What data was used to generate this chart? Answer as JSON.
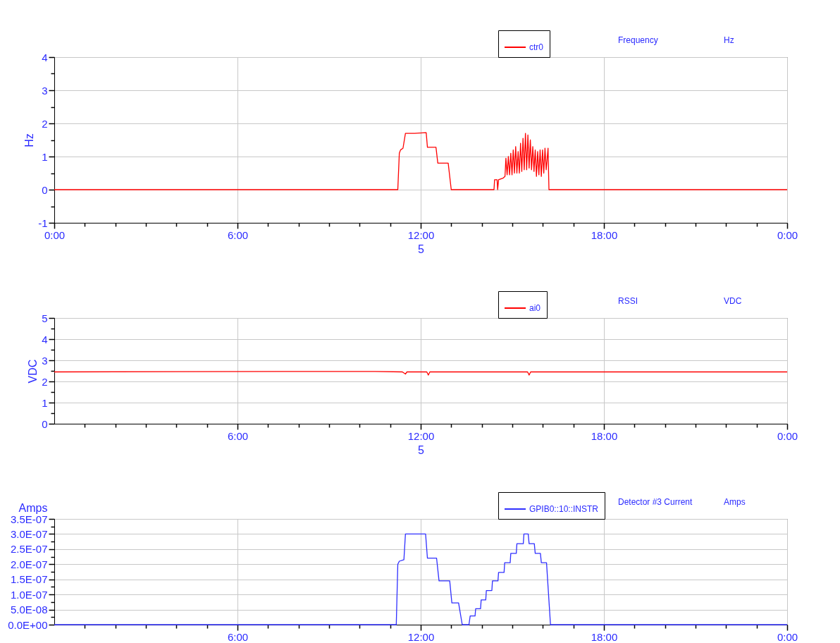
{
  "chart_data": [
    {
      "type": "line",
      "ylabel": "Hz",
      "xlabel": "5",
      "annotations": [
        "Frequency",
        "Hz"
      ],
      "legend": "top right",
      "grid": true,
      "xlim": [
        0,
        24
      ],
      "ylim": [
        -1,
        4
      ],
      "xticks": [
        {
          "value": 0,
          "label": "0:00"
        },
        {
          "value": 1,
          "label": null
        },
        {
          "value": 2,
          "label": null
        },
        {
          "value": 3,
          "label": null
        },
        {
          "value": 4,
          "label": null
        },
        {
          "value": 5,
          "label": null
        },
        {
          "value": 6,
          "label": "6:00"
        },
        {
          "value": 7,
          "label": null
        },
        {
          "value": 8,
          "label": null
        },
        {
          "value": 9,
          "label": null
        },
        {
          "value": 10,
          "label": null
        },
        {
          "value": 11,
          "label": null
        },
        {
          "value": 12,
          "label": "12:00"
        },
        {
          "value": 13,
          "label": null
        },
        {
          "value": 14,
          "label": null
        },
        {
          "value": 15,
          "label": null
        },
        {
          "value": 16,
          "label": null
        },
        {
          "value": 17,
          "label": null
        },
        {
          "value": 18,
          "label": "18:00"
        },
        {
          "value": 19,
          "label": null
        },
        {
          "value": 20,
          "label": null
        },
        {
          "value": 21,
          "label": null
        },
        {
          "value": 22,
          "label": null
        },
        {
          "value": 23,
          "label": null
        },
        {
          "value": 24,
          "label": "0:00"
        }
      ],
      "yticks": [
        -1,
        {
          "value": -0.5,
          "label": null
        },
        0,
        {
          "value": 0.5,
          "label": null
        },
        1,
        {
          "value": 1.5,
          "label": null
        },
        2,
        {
          "value": 2.5,
          "label": null
        },
        3,
        {
          "value": 3.5,
          "label": null
        },
        4
      ],
      "series": [
        {
          "name": "ctr0",
          "color": "#ff0000",
          "x": [
            0,
            11.25,
            11.3,
            11.34,
            11.42,
            11.5,
            11.8,
            12.18,
            12.22,
            12.5,
            12.56,
            12.9,
            13.0,
            14.4,
            14.42,
            14.5,
            14.52,
            14.55,
            14.7,
            14.76,
            14.79,
            14.83,
            14.87,
            14.91,
            14.95,
            14.99,
            15.03,
            15.07,
            15.11,
            15.15,
            15.19,
            15.23,
            15.27,
            15.31,
            15.35,
            15.39,
            15.43,
            15.47,
            15.51,
            15.55,
            15.59,
            15.63,
            15.67,
            15.71,
            15.75,
            15.79,
            15.83,
            15.87,
            15.91,
            15.95,
            15.99,
            16.03,
            16.07,
            16.11,
            16.17,
            16.2,
            24
          ],
          "values": [
            0,
            0,
            1.1,
            1.2,
            1.25,
            1.7,
            1.7,
            1.72,
            1.28,
            1.28,
            0.8,
            0.8,
            0,
            0,
            0.3,
            0.3,
            0,
            0.3,
            0.35,
            0.4,
            0.95,
            0.45,
            1.0,
            0.45,
            1.1,
            0.45,
            1.2,
            0.5,
            1.3,
            0.5,
            1.15,
            0.5,
            1.4,
            0.55,
            1.55,
            0.6,
            1.7,
            0.6,
            1.65,
            0.65,
            1.5,
            0.6,
            1.3,
            0.55,
            1.2,
            0.4,
            1.15,
            0.45,
            1.2,
            0.4,
            1.2,
            0.5,
            1.25,
            0.6,
            1.25,
            0,
            0
          ]
        }
      ]
    },
    {
      "type": "line",
      "ylabel": "VDC",
      "xlabel": "5",
      "annotations": [
        "RSSI",
        "VDC"
      ],
      "legend": "top right",
      "grid": true,
      "xlim": [
        0,
        24
      ],
      "ylim": [
        0,
        5
      ],
      "xticks": [
        {
          "value": 1,
          "label": null
        },
        {
          "value": 2,
          "label": null
        },
        {
          "value": 3,
          "label": null
        },
        {
          "value": 4,
          "label": null
        },
        {
          "value": 5,
          "label": null
        },
        {
          "value": 6,
          "label": "6:00"
        },
        {
          "value": 7,
          "label": null
        },
        {
          "value": 8,
          "label": null
        },
        {
          "value": 9,
          "label": null
        },
        {
          "value": 10,
          "label": null
        },
        {
          "value": 11,
          "label": null
        },
        {
          "value": 12,
          "label": "12:00"
        },
        {
          "value": 13,
          "label": null
        },
        {
          "value": 14,
          "label": null
        },
        {
          "value": 15,
          "label": null
        },
        {
          "value": 16,
          "label": null
        },
        {
          "value": 17,
          "label": null
        },
        {
          "value": 18,
          "label": "18:00"
        },
        {
          "value": 19,
          "label": null
        },
        {
          "value": 20,
          "label": null
        },
        {
          "value": 21,
          "label": null
        },
        {
          "value": 22,
          "label": null
        },
        {
          "value": 23,
          "label": null
        },
        {
          "value": 24,
          "label": "0:00"
        }
      ],
      "yticks": [
        0,
        {
          "value": 0.5,
          "label": null
        },
        1,
        {
          "value": 1.5,
          "label": null
        },
        2,
        {
          "value": 2.5,
          "label": null
        },
        3,
        {
          "value": 3.5,
          "label": null
        },
        4,
        {
          "value": 4.5,
          "label": null
        },
        5
      ],
      "series": [
        {
          "name": "ai0",
          "color": "#ff0000",
          "x": [
            0,
            7.5,
            10.5,
            11.4,
            11.5,
            11.55,
            12.2,
            12.25,
            12.3,
            15.5,
            15.55,
            15.6,
            24
          ],
          "values": [
            2.45,
            2.47,
            2.47,
            2.45,
            2.35,
            2.45,
            2.45,
            2.3,
            2.45,
            2.45,
            2.3,
            2.45,
            2.45
          ]
        }
      ]
    },
    {
      "type": "line",
      "ylabel": "Amps",
      "annotations": [
        "Detector #3 Current",
        "Amps"
      ],
      "legend": "top right",
      "grid": true,
      "xlim": [
        0,
        24
      ],
      "ylim": [
        0,
        3.5e-07
      ],
      "xticks": [
        {
          "value": 1,
          "label": null
        },
        {
          "value": 2,
          "label": null
        },
        {
          "value": 3,
          "label": null
        },
        {
          "value": 4,
          "label": null
        },
        {
          "value": 5,
          "label": null
        },
        {
          "value": 6,
          "label": "6:00"
        },
        {
          "value": 7,
          "label": null
        },
        {
          "value": 8,
          "label": null
        },
        {
          "value": 9,
          "label": null
        },
        {
          "value": 10,
          "label": null
        },
        {
          "value": 11,
          "label": null
        },
        {
          "value": 12,
          "label": "12:00"
        },
        {
          "value": 13,
          "label": null
        },
        {
          "value": 14,
          "label": null
        },
        {
          "value": 15,
          "label": null
        },
        {
          "value": 16,
          "label": null
        },
        {
          "value": 17,
          "label": null
        },
        {
          "value": 18,
          "label": "18:00"
        },
        {
          "value": 19,
          "label": null
        },
        {
          "value": 20,
          "label": null
        },
        {
          "value": 21,
          "label": null
        },
        {
          "value": 22,
          "label": null
        },
        {
          "value": 23,
          "label": null
        },
        {
          "value": 24,
          "label": "0:00"
        }
      ],
      "yticks": [
        {
          "value": 0,
          "label": "0.0E+00"
        },
        {
          "value": 2.5e-08,
          "label": null
        },
        {
          "value": 5e-08,
          "label": "5.0E-08"
        },
        {
          "value": 7.5e-08,
          "label": null
        },
        {
          "value": 1e-07,
          "label": "1.0E-07"
        },
        {
          "value": 1.25e-07,
          "label": null
        },
        {
          "value": 1.5e-07,
          "label": "1.5E-07"
        },
        {
          "value": 1.75e-07,
          "label": null
        },
        {
          "value": 2e-07,
          "label": "2.0E-07"
        },
        {
          "value": 2.25e-07,
          "label": null
        },
        {
          "value": 2.5e-07,
          "label": "2.5E-07"
        },
        {
          "value": 2.75e-07,
          "label": null
        },
        {
          "value": 3e-07,
          "label": "3.0E-07"
        },
        {
          "value": 3.25e-07,
          "label": null
        },
        {
          "value": 3.5e-07,
          "label": "3.5E-07"
        }
      ],
      "series": [
        {
          "name": "GPIB0::10::INSTR",
          "color": "#3030ff",
          "x": [
            0,
            11.2,
            11.25,
            11.3,
            11.45,
            11.5,
            12.16,
            12.22,
            12.52,
            12.6,
            12.95,
            13.02,
            13.24,
            13.36,
            13.58,
            13.62,
            13.78,
            13.8,
            13.96,
            13.98,
            14.13,
            14.15,
            14.33,
            14.35,
            14.53,
            14.55,
            14.73,
            14.75,
            14.93,
            14.95,
            15.13,
            15.15,
            15.36,
            15.38,
            15.52,
            15.55,
            15.72,
            15.75,
            15.92,
            15.95,
            16.12,
            16.25,
            24
          ],
          "values": [
            0,
            0,
            2e-07,
            2.1e-07,
            2.15e-07,
            3e-07,
            3e-07,
            2.2e-07,
            2.2e-07,
            1.45e-07,
            1.45e-07,
            7.2e-08,
            7.2e-08,
            0,
            0,
            2.9e-08,
            2.9e-08,
            5.3e-08,
            5.3e-08,
            8.2e-08,
            8.2e-08,
            1.13e-07,
            1.13e-07,
            1.45e-07,
            1.45e-07,
            1.73e-07,
            1.73e-07,
            2.05e-07,
            2.05e-07,
            2.36e-07,
            2.36e-07,
            2.68e-07,
            2.68e-07,
            3e-07,
            3e-07,
            2.68e-07,
            2.68e-07,
            2.36e-07,
            2.36e-07,
            2.05e-07,
            2.05e-07,
            0,
            0
          ]
        }
      ]
    }
  ]
}
